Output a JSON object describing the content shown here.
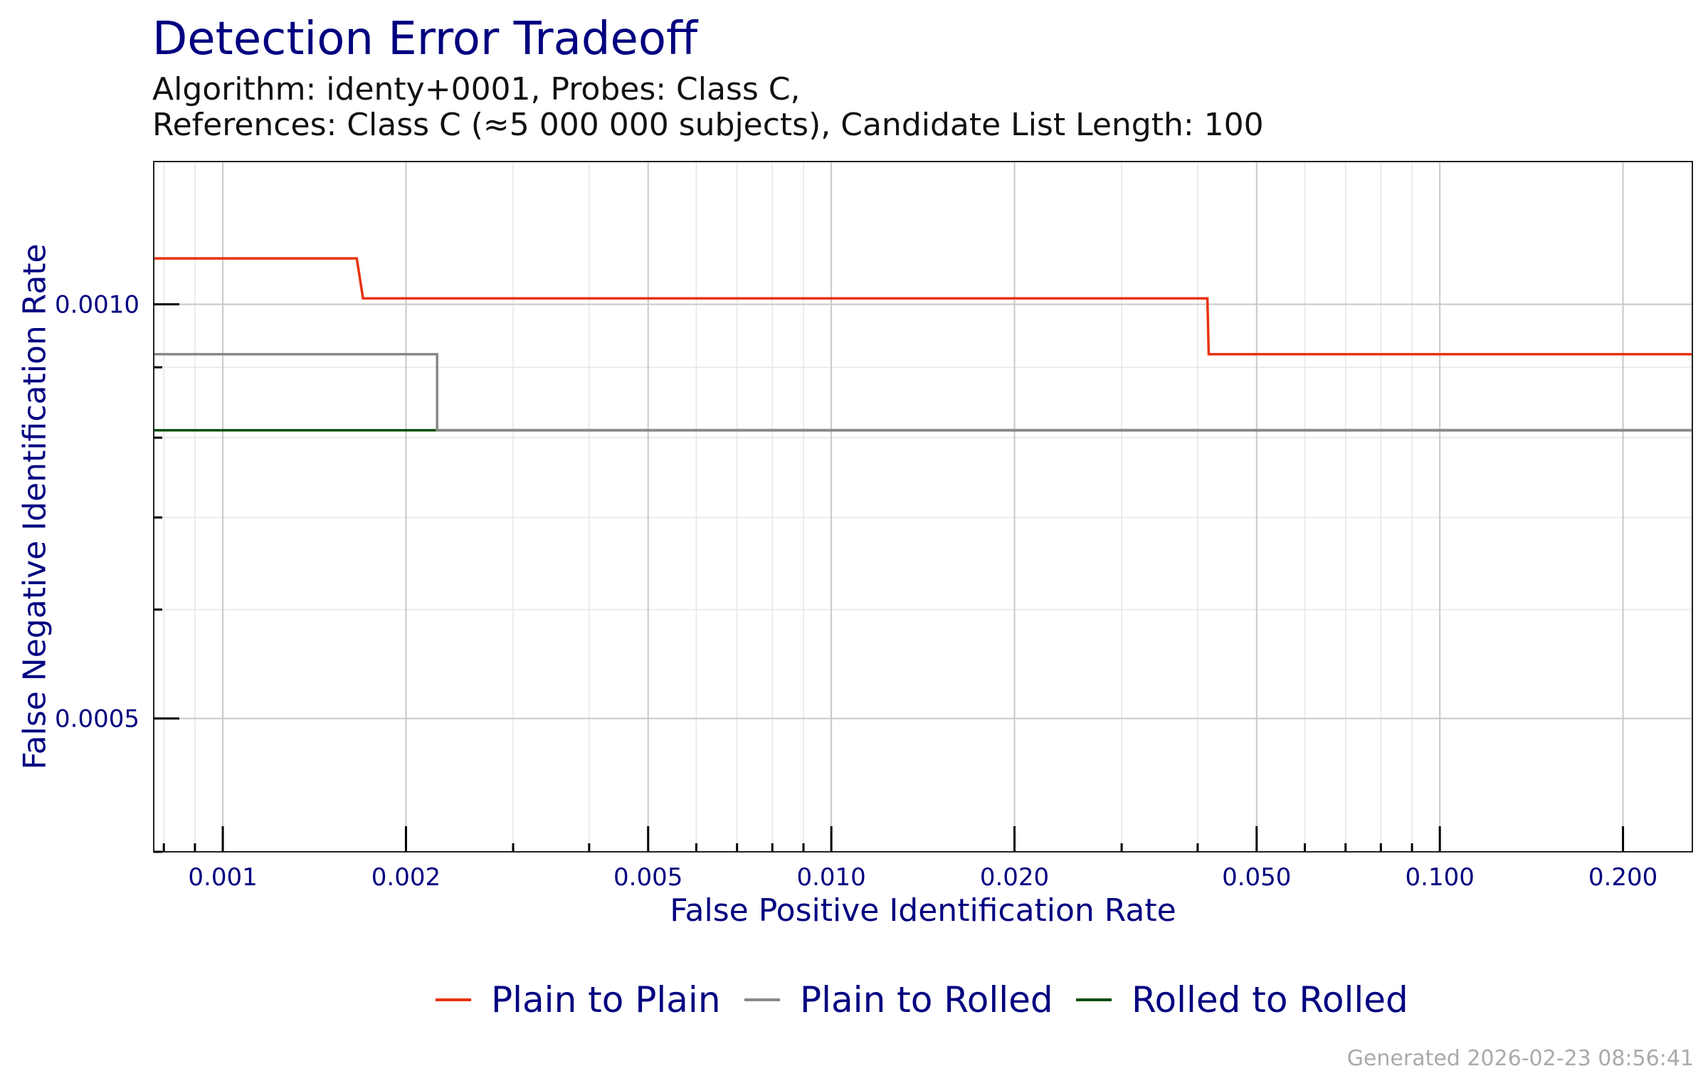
{
  "chart_data": {
    "type": "line",
    "title": "Detection Error Tradeoff",
    "subtitle_lines": [
      "Algorithm: identy+0001, Probes: Class C,",
      "References: Class C (≈5 000 000 subjects), Candidate List Length: 100"
    ],
    "xlabel": "False Positive Identification Rate",
    "ylabel": "False Negative Identification Rate",
    "x_scale": "log",
    "y_scale": "log",
    "xlim": [
      0.00077,
      0.26
    ],
    "ylim": [
      0.0004,
      0.00127
    ],
    "x_ticks": [
      {
        "value": 0.001,
        "label": "0.001"
      },
      {
        "value": 0.002,
        "label": "0.002"
      },
      {
        "value": 0.005,
        "label": "0.005"
      },
      {
        "value": 0.01,
        "label": "0.010"
      },
      {
        "value": 0.02,
        "label": "0.020"
      },
      {
        "value": 0.05,
        "label": "0.050"
      },
      {
        "value": 0.1,
        "label": "0.100"
      },
      {
        "value": 0.2,
        "label": "0.200"
      }
    ],
    "y_ticks": [
      {
        "value": 0.0005,
        "label": "0.0005"
      },
      {
        "value": 0.001,
        "label": "0.0010"
      }
    ],
    "grid": true,
    "legend_position": "bottom",
    "series": [
      {
        "name": "Plain to Plain",
        "color": "#e8320e",
        "points": [
          [
            0.00077,
            0.00108
          ],
          [
            0.00166,
            0.00108
          ],
          [
            0.0017,
            0.00101
          ],
          [
            0.0415,
            0.00101
          ],
          [
            0.0417,
            0.00092
          ],
          [
            0.26,
            0.00092
          ]
        ]
      },
      {
        "name": "Plain to Rolled",
        "color": "#888888",
        "points": [
          [
            0.00077,
            0.00092
          ],
          [
            0.00225,
            0.00092
          ],
          [
            0.00225,
            0.00081
          ],
          [
            0.26,
            0.00081
          ]
        ]
      },
      {
        "name": "Rolled to Rolled",
        "color": "#0a4d0a",
        "points": [
          [
            0.00077,
            0.00081
          ],
          [
            0.26,
            0.00081
          ]
        ]
      }
    ]
  },
  "footer": {
    "generated": "Generated 2026-02-23 08:56:41"
  }
}
